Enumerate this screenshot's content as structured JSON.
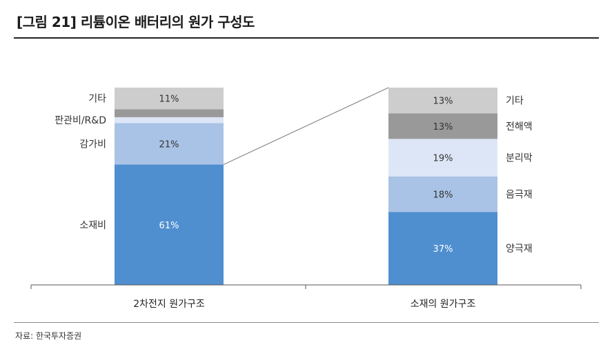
{
  "title": "[그림 21] 리튬이온 배터리의 원가 구성도",
  "source": "자료: 한국투자증권",
  "colors": {
    "blue": "#4f8fd0",
    "light_blue": "#a9c3e6",
    "very_light_blue": "#dde6f6",
    "dark_gray": "#999999",
    "light_gray": "#cdcdcd",
    "axis": "#555555",
    "connector": "#777777"
  },
  "chart_data": {
    "type": "bar",
    "stacked": true,
    "normalized": true,
    "ylim": [
      0,
      100
    ],
    "grid": false,
    "categories": [
      "2차전지 원가구조",
      "소재의 원가구조"
    ],
    "stacks": [
      {
        "category": "2차전지 원가구조",
        "label_side": "left",
        "segments": [
          {
            "name": "소재비",
            "value": 61,
            "label": "61%",
            "color": "#4f8fd0"
          },
          {
            "name": "감가비",
            "value": 21,
            "label": "21%",
            "color": "#a9c3e6"
          },
          {
            "name": "판관비/R&D",
            "value": 3,
            "label": "",
            "color": "#dde6f6"
          },
          {
            "name": "",
            "value": 4,
            "label": "",
            "color": "#999999"
          },
          {
            "name": "기타",
            "value": 11,
            "label": "11%",
            "color": "#cdcdcd"
          }
        ]
      },
      {
        "category": "소재의 원가구조",
        "label_side": "right",
        "segments": [
          {
            "name": "양극재",
            "value": 37,
            "label": "37%",
            "color": "#4f8fd0"
          },
          {
            "name": "음극재",
            "value": 18,
            "label": "18%",
            "color": "#a9c3e6"
          },
          {
            "name": "분리막",
            "value": 19,
            "label": "19%",
            "color": "#dde6f6"
          },
          {
            "name": "전해액",
            "value": 13,
            "label": "13%",
            "color": "#999999"
          },
          {
            "name": "기타",
            "value": 13,
            "label": "13%",
            "color": "#cdcdcd"
          }
        ]
      }
    ],
    "connector": {
      "from_category": "2차전지 원가구조",
      "from_segment": "소재비",
      "to_category": "소재의 원가구조"
    }
  }
}
